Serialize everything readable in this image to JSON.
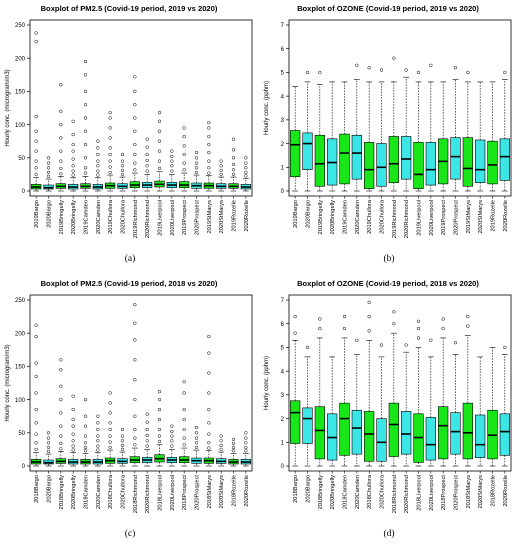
{
  "colors": {
    "green": "#19e619",
    "cyan": "#3ce6e6",
    "box_edge": "#000000",
    "outlier": "#000000"
  },
  "chart_data": [
    {
      "panel": "(a)",
      "type": "boxplot",
      "title": "Boxplot of PM2.5 (Covid-19 period, 2019 vs 2020)",
      "ylabel": "Hourly conc. (microgram/m3)",
      "ylim": [
        0,
        250
      ],
      "yticks": [
        0,
        50,
        100,
        150,
        200,
        250
      ],
      "categories": [
        "2019Bargo",
        "2020Bargo",
        "2019Bringelly",
        "2020Bringelly",
        "2019Camden",
        "2020Camden",
        "2019Chullora",
        "2020Chullora",
        "2019Richmond",
        "2020Richmond",
        "2019Liverpool",
        "2020Liverpool",
        "2019Prospect",
        "2020Prospect",
        "2019StMarys",
        "2020StMarys",
        "2019Rozelle",
        "2020Rozelle"
      ],
      "boxes": [
        {
          "whislo": 0,
          "q1": 3,
          "med": 6,
          "q3": 10,
          "whishi": 20,
          "outliers": [
            25,
            35,
            45,
            60,
            75,
            90,
            112,
            225,
            238
          ]
        },
        {
          "whislo": 0,
          "q1": 3,
          "med": 5,
          "q3": 9,
          "whishi": 18,
          "outliers": [
            22,
            28,
            35,
            42,
            50
          ]
        },
        {
          "whislo": 0,
          "q1": 4,
          "med": 7,
          "q3": 11,
          "whishi": 22,
          "outliers": [
            26,
            34,
            45,
            60,
            80,
            100,
            120,
            160
          ]
        },
        {
          "whislo": 0,
          "q1": 3,
          "med": 6,
          "q3": 10,
          "whishi": 20,
          "outliers": [
            24,
            30,
            38,
            48,
            60,
            70,
            85,
            105
          ]
        },
        {
          "whislo": 0,
          "q1": 4,
          "med": 7,
          "q3": 11,
          "whishi": 22,
          "outliers": [
            27,
            35,
            50,
            70,
            90,
            110,
            130,
            150,
            175,
            195
          ]
        },
        {
          "whislo": 0,
          "q1": 3,
          "med": 6,
          "q3": 10,
          "whishi": 20,
          "outliers": [
            24,
            30,
            38,
            45,
            55,
            65,
            75
          ]
        },
        {
          "whislo": 0,
          "q1": 4,
          "med": 8,
          "q3": 12,
          "whishi": 24,
          "outliers": [
            28,
            36,
            45,
            55,
            65,
            80,
            95,
            110,
            118
          ]
        },
        {
          "whislo": 0,
          "q1": 4,
          "med": 7,
          "q3": 11,
          "whishi": 21,
          "outliers": [
            25,
            31,
            38,
            45,
            55
          ]
        },
        {
          "whislo": 0,
          "q1": 5,
          "med": 9,
          "q3": 14,
          "whishi": 27,
          "outliers": [
            32,
            42,
            55,
            70,
            90,
            110,
            130,
            150,
            172
          ]
        },
        {
          "whislo": 0,
          "q1": 5,
          "med": 9,
          "q3": 13,
          "whishi": 25,
          "outliers": [
            30,
            38,
            46,
            55,
            66,
            78
          ]
        },
        {
          "whislo": 0,
          "q1": 6,
          "med": 10,
          "q3": 15,
          "whishi": 29,
          "outliers": [
            34,
            45,
            60,
            75,
            90,
            105,
            118
          ]
        },
        {
          "whislo": 0,
          "q1": 5,
          "med": 9,
          "q3": 13,
          "whishi": 25,
          "outliers": [
            30,
            38,
            45,
            52,
            60
          ]
        },
        {
          "whislo": 0,
          "q1": 5,
          "med": 9,
          "q3": 14,
          "whishi": 27,
          "outliers": [
            32,
            42,
            55,
            68,
            82,
            95
          ]
        },
        {
          "whislo": 0,
          "q1": 4,
          "med": 8,
          "q3": 12,
          "whishi": 24,
          "outliers": [
            28,
            35,
            42,
            50,
            58
          ]
        },
        {
          "whislo": 0,
          "q1": 4,
          "med": 8,
          "q3": 12,
          "whishi": 23,
          "outliers": [
            27,
            35,
            45,
            58,
            70,
            82,
            95,
            103
          ]
        },
        {
          "whislo": 0,
          "q1": 4,
          "med": 7,
          "q3": 11,
          "whishi": 21,
          "outliers": [
            25,
            31,
            38,
            45
          ]
        },
        {
          "whislo": 0,
          "q1": 4,
          "med": 7,
          "q3": 11,
          "whishi": 21,
          "outliers": [
            25,
            32,
            40,
            50,
            62,
            78
          ]
        },
        {
          "whislo": 0,
          "q1": 3,
          "med": 6,
          "q3": 10,
          "whishi": 19,
          "outliers": [
            23,
            28,
            35,
            42,
            50
          ]
        }
      ]
    },
    {
      "panel": "(b)",
      "type": "boxplot",
      "title": "Boxplot of OZONE (Covid-19 period, 2019 vs 2020)",
      "ylabel": "Hourly conc. (pphm)",
      "ylim": [
        0,
        7
      ],
      "yticks": [
        0,
        1,
        2,
        3,
        4,
        5,
        6,
        7
      ],
      "categories": [
        "2019Bargo",
        "2020Bargo",
        "2019Bringelly",
        "2020Bringelly",
        "2019Camden",
        "2020Camden",
        "2019Chullora",
        "2020Chullora",
        "2019Richmond",
        "2020Richmond",
        "2019Liverpool",
        "2020Liverpool",
        "2019Prospect",
        "2020Prospect",
        "2019StMarys",
        "2020StMarys",
        "2019Rozelle",
        "2020Rozelle"
      ],
      "boxes": [
        {
          "whislo": 0,
          "q1": 0.6,
          "med": 1.95,
          "q3": 2.55,
          "whishi": 4.4,
          "outliers": []
        },
        {
          "whislo": 0,
          "q1": 0.9,
          "med": 2.0,
          "q3": 2.45,
          "whishi": 4.6,
          "outliers": [
            5.0
          ]
        },
        {
          "whislo": 0,
          "q1": 0.2,
          "med": 1.15,
          "q3": 2.35,
          "whishi": 4.5,
          "outliers": [
            5.0
          ]
        },
        {
          "whislo": 0,
          "q1": 0.25,
          "med": 1.2,
          "q3": 2.2,
          "whishi": 4.6,
          "outliers": []
        },
        {
          "whislo": 0,
          "q1": 0.3,
          "med": 1.6,
          "q3": 2.4,
          "whishi": 4.6,
          "outliers": []
        },
        {
          "whislo": 0,
          "q1": 0.5,
          "med": 1.6,
          "q3": 2.35,
          "whishi": 4.7,
          "outliers": [
            5.3
          ]
        },
        {
          "whislo": 0,
          "q1": 0.1,
          "med": 0.9,
          "q3": 2.05,
          "whishi": 4.6,
          "outliers": [
            5.2
          ]
        },
        {
          "whislo": 0,
          "q1": 0.2,
          "med": 1.0,
          "q3": 2.0,
          "whishi": 4.6,
          "outliers": [
            5.1
          ]
        },
        {
          "whislo": 0,
          "q1": 0.35,
          "med": 1.15,
          "q3": 2.3,
          "whishi": 4.6,
          "outliers": [
            5.6
          ]
        },
        {
          "whislo": 0,
          "q1": 0.5,
          "med": 1.35,
          "q3": 2.3,
          "whishi": 4.8,
          "outliers": [
            5.1
          ]
        },
        {
          "whislo": 0,
          "q1": 0.1,
          "med": 0.7,
          "q3": 2.05,
          "whishi": 4.6,
          "outliers": [
            5.0
          ]
        },
        {
          "whislo": 0,
          "q1": 0.25,
          "med": 0.9,
          "q3": 2.05,
          "whishi": 4.6,
          "outliers": [
            5.3
          ]
        },
        {
          "whislo": 0,
          "q1": 0.3,
          "med": 1.25,
          "q3": 2.2,
          "whishi": 4.6,
          "outliers": []
        },
        {
          "whislo": 0,
          "q1": 0.5,
          "med": 1.45,
          "q3": 2.25,
          "whishi": 4.7,
          "outliers": [
            5.2
          ]
        },
        {
          "whislo": 0,
          "q1": 0.2,
          "med": 0.95,
          "q3": 2.25,
          "whishi": 4.6,
          "outliers": [
            5.0
          ]
        },
        {
          "whislo": 0,
          "q1": 0.35,
          "med": 0.9,
          "q3": 2.15,
          "whishi": 4.6,
          "outliers": []
        },
        {
          "whislo": 0,
          "q1": 0.3,
          "med": 1.1,
          "q3": 2.1,
          "whishi": 4.6,
          "outliers": []
        },
        {
          "whislo": 0,
          "q1": 0.45,
          "med": 1.45,
          "q3": 2.2,
          "whishi": 4.7,
          "outliers": [
            5.0
          ]
        }
      ]
    },
    {
      "panel": "(c)",
      "type": "boxplot",
      "title": "Boxplot of PM2.5 (Covid-19 period, 2018 vs 2020)",
      "ylabel": "Hourly conc. (microgram/m3)",
      "ylim": [
        0,
        250
      ],
      "yticks": [
        0,
        50,
        100,
        150,
        200,
        250
      ],
      "categories": [
        "2018Bargo",
        "2020Bargo",
        "2018Bringelly",
        "2020Bringelly",
        "2018Camden",
        "2020Camden",
        "2018Chullora",
        "2020Chullora",
        "2018Richmond",
        "2020Richmond",
        "2018Liverpool",
        "2020Liverpool",
        "2018Prospect",
        "2020Prospect",
        "2018StMarys",
        "2020StMarys",
        "2018Rozelle",
        "2020Rozelle"
      ],
      "boxes": [
        {
          "whislo": 0,
          "q1": 3,
          "med": 6,
          "q3": 10,
          "whishi": 20,
          "outliers": [
            25,
            35,
            48,
            65,
            85,
            110,
            135,
            155,
            195,
            212
          ]
        },
        {
          "whislo": 0,
          "q1": 3,
          "med": 5,
          "q3": 9,
          "whishi": 18,
          "outliers": [
            22,
            28,
            35,
            42,
            50
          ]
        },
        {
          "whislo": 0,
          "q1": 4,
          "med": 7,
          "q3": 11,
          "whishi": 22,
          "outliers": [
            26,
            34,
            45,
            60,
            80,
            100,
            120,
            145,
            160
          ]
        },
        {
          "whislo": 0,
          "q1": 3,
          "med": 6,
          "q3": 10,
          "whishi": 20,
          "outliers": [
            24,
            30,
            38,
            48,
            60,
            70,
            85,
            105
          ]
        },
        {
          "whislo": 0,
          "q1": 3,
          "med": 6,
          "q3": 10,
          "whishi": 19,
          "outliers": [
            23,
            28,
            35,
            45,
            60,
            75,
            100
          ]
        },
        {
          "whislo": 0,
          "q1": 3,
          "med": 6,
          "q3": 10,
          "whishi": 20,
          "outliers": [
            24,
            30,
            38,
            45,
            55,
            65,
            75
          ]
        },
        {
          "whislo": 0,
          "q1": 4,
          "med": 8,
          "q3": 12,
          "whishi": 24,
          "outliers": [
            28,
            36,
            45,
            55,
            65,
            80,
            95,
            110
          ]
        },
        {
          "whislo": 0,
          "q1": 4,
          "med": 7,
          "q3": 11,
          "whishi": 21,
          "outliers": [
            25,
            31,
            38,
            45,
            55
          ]
        },
        {
          "whislo": 0,
          "q1": 5,
          "med": 9,
          "q3": 14,
          "whishi": 27,
          "outliers": [
            32,
            42,
            55,
            75,
            100,
            130,
            160,
            190,
            215,
            243
          ]
        },
        {
          "whislo": 0,
          "q1": 5,
          "med": 9,
          "q3": 13,
          "whishi": 25,
          "outliers": [
            30,
            38,
            46,
            55,
            66,
            78
          ]
        },
        {
          "whislo": 0,
          "q1": 6,
          "med": 11,
          "q3": 17,
          "whishi": 32,
          "outliers": [
            37,
            45,
            55,
            70,
            85,
            100,
            112
          ]
        },
        {
          "whislo": 0,
          "q1": 5,
          "med": 9,
          "q3": 13,
          "whishi": 25,
          "outliers": [
            30,
            38,
            45,
            52,
            60
          ]
        },
        {
          "whislo": 0,
          "q1": 5,
          "med": 9,
          "q3": 14,
          "whishi": 27,
          "outliers": [
            32,
            42,
            55,
            70,
            85,
            110,
            127
          ]
        },
        {
          "whislo": 0,
          "q1": 4,
          "med": 8,
          "q3": 12,
          "whishi": 24,
          "outliers": [
            28,
            35,
            42,
            50,
            58
          ]
        },
        {
          "whislo": 0,
          "q1": 4,
          "med": 8,
          "q3": 12,
          "whishi": 23,
          "outliers": [
            27,
            35,
            48,
            65,
            85,
            110,
            140,
            170,
            195
          ]
        },
        {
          "whislo": 0,
          "q1": 4,
          "med": 7,
          "q3": 11,
          "whishi": 21,
          "outliers": [
            25,
            31,
            38,
            45
          ]
        },
        {
          "whislo": 0,
          "q1": 3,
          "med": 6,
          "q3": 10,
          "whishi": 19,
          "outliers": [
            23,
            28,
            34,
            40
          ]
        },
        {
          "whislo": 0,
          "q1": 3,
          "med": 6,
          "q3": 10,
          "whishi": 19,
          "outliers": [
            23,
            28,
            35,
            42,
            50
          ]
        }
      ]
    },
    {
      "panel": "(d)",
      "type": "boxplot",
      "title": "Boxplot of OZONE (Covid-19 period, 2018 vs 2020)",
      "ylabel": "Hourly conc. (pphm)",
      "ylim": [
        0,
        7
      ],
      "yticks": [
        0,
        1,
        2,
        3,
        4,
        5,
        6,
        7
      ],
      "categories": [
        "2018Bargo",
        "2020Bargo",
        "2018Bringelly",
        "2020Bringelly",
        "2018Camden",
        "2020Camden",
        "2018Chullora",
        "2020Chullora",
        "2018Richmond",
        "2020Richmond",
        "2018Liverpool",
        "2020Liverpool",
        "2018Prospect",
        "2020Prospect",
        "2018StMarys",
        "2020StMarys",
        "2018Rozelle",
        "2020Rozelle"
      ],
      "boxes": [
        {
          "whislo": 0,
          "q1": 0.95,
          "med": 2.25,
          "q3": 2.75,
          "whishi": 5.3,
          "outliers": [
            5.6,
            6.3
          ]
        },
        {
          "whislo": 0,
          "q1": 0.95,
          "med": 2.0,
          "q3": 2.45,
          "whishi": 4.6,
          "outliers": [
            5.0
          ]
        },
        {
          "whislo": 0,
          "q1": 0.3,
          "med": 1.5,
          "q3": 2.5,
          "whishi": 5.4,
          "outliers": [
            5.8,
            6.2
          ]
        },
        {
          "whislo": 0,
          "q1": 0.25,
          "med": 1.2,
          "q3": 2.2,
          "whishi": 4.6,
          "outliers": []
        },
        {
          "whislo": 0,
          "q1": 0.45,
          "med": 2.0,
          "q3": 2.65,
          "whishi": 5.4,
          "outliers": [
            5.8,
            6.3
          ]
        },
        {
          "whislo": 0,
          "q1": 0.5,
          "med": 1.6,
          "q3": 2.35,
          "whishi": 4.7,
          "outliers": [
            5.3
          ]
        },
        {
          "whislo": 0,
          "q1": 0.2,
          "med": 1.35,
          "q3": 2.3,
          "whishi": 5.3,
          "outliers": [
            5.7,
            6.3,
            6.9
          ]
        },
        {
          "whislo": 0,
          "q1": 0.2,
          "med": 1.0,
          "q3": 2.0,
          "whishi": 4.6,
          "outliers": [
            5.1
          ]
        },
        {
          "whislo": 0,
          "q1": 0.4,
          "med": 1.75,
          "q3": 2.65,
          "whishi": 5.6,
          "outliers": [
            6.0,
            6.5
          ]
        },
        {
          "whislo": 0,
          "q1": 0.5,
          "med": 1.35,
          "q3": 2.3,
          "whishi": 4.8,
          "outliers": [
            5.1
          ]
        },
        {
          "whislo": 0,
          "q1": 0.15,
          "med": 1.2,
          "q3": 2.2,
          "whishi": 5.0,
          "outliers": [
            5.4,
            5.8,
            6.1
          ]
        },
        {
          "whislo": 0,
          "q1": 0.25,
          "med": 0.9,
          "q3": 2.05,
          "whishi": 4.6,
          "outliers": [
            5.3
          ]
        },
        {
          "whislo": 0,
          "q1": 0.3,
          "med": 1.7,
          "q3": 2.5,
          "whishi": 5.4,
          "outliers": [
            5.8,
            6.2
          ]
        },
        {
          "whislo": 0,
          "q1": 0.5,
          "med": 1.45,
          "q3": 2.25,
          "whishi": 4.7,
          "outliers": [
            5.2
          ]
        },
        {
          "whislo": 0,
          "q1": 0.3,
          "med": 1.4,
          "q3": 2.65,
          "whishi": 5.5,
          "outliers": [
            5.9,
            6.3
          ]
        },
        {
          "whislo": 0,
          "q1": 0.35,
          "med": 0.9,
          "q3": 2.15,
          "whishi": 4.6,
          "outliers": []
        },
        {
          "whislo": 0,
          "q1": 0.3,
          "med": 1.3,
          "q3": 2.35,
          "whishi": 5.0,
          "outliers": []
        },
        {
          "whislo": 0,
          "q1": 0.45,
          "med": 1.45,
          "q3": 2.2,
          "whishi": 4.7,
          "outliers": [
            5.0
          ]
        }
      ]
    }
  ]
}
